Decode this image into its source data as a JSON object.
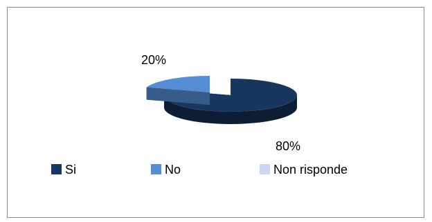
{
  "chart_data": {
    "type": "pie",
    "style": "3d-exploded",
    "categories": [
      "Si",
      "No",
      "Non risponde"
    ],
    "values": [
      80,
      20,
      0
    ],
    "data_labels": [
      "80%",
      "20%",
      ""
    ],
    "legend_position": "bottom",
    "colors": {
      "Si": "#17375e",
      "No": "#558ed5",
      "Non risponde": "#c6d9f1"
    }
  }
}
